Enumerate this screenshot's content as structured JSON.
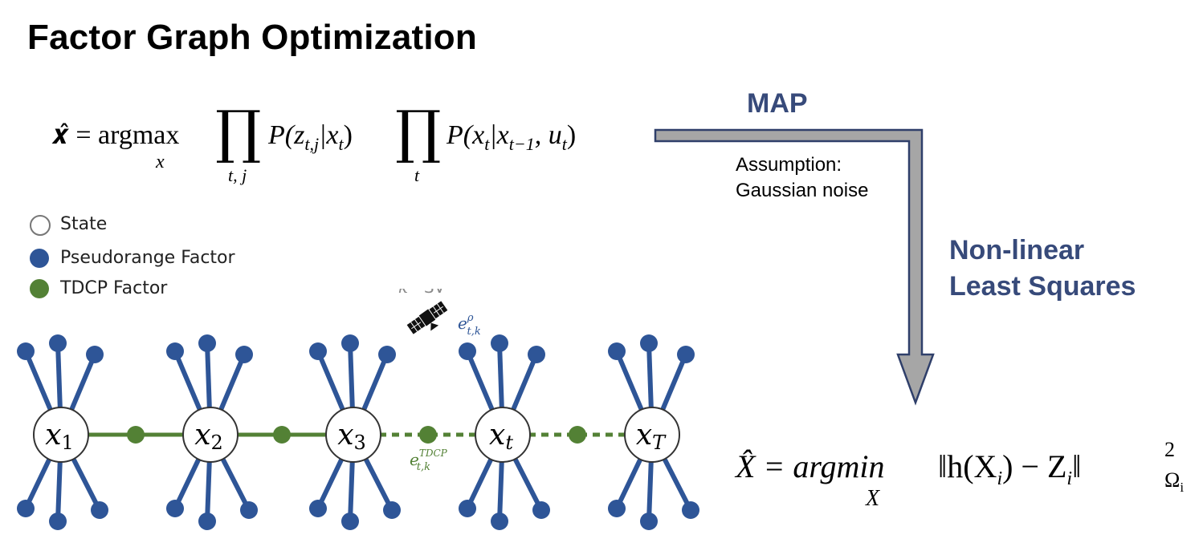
{
  "title": "Factor Graph Optimization",
  "colors": {
    "factor_blue": "#2e5597",
    "tdcp_green": "#538135",
    "arrow_gray": "#a6a6a6",
    "arrow_border": "#2f3f6a",
    "heading_blue": "#374a7a"
  },
  "map_equation": {
    "lhs": "𝒙̂ = argmax",
    "argmax_sub": "x",
    "prod1_sub": "t, j",
    "term1": "P(z",
    "term1_sub": "t,j",
    "term1_rest": "|x",
    "term1_sub2": "t",
    "term1_close": ")",
    "prod2_sub": "t",
    "term2": "P(x",
    "term2_sub": "t",
    "term2_rest": "|x",
    "term2_sub2": "t−1",
    "term2_rest2": ", u",
    "term2_sub3": "t",
    "term2_close": ")"
  },
  "legend": [
    {
      "label": "State",
      "icon": "hollow-circle-icon"
    },
    {
      "label": "Pseudorange Factor",
      "icon": "blue-dot-icon"
    },
    {
      "label": "TDCP Factor",
      "icon": "green-dot-icon"
    }
  ],
  "flow": {
    "map_label": "MAP",
    "assumption_line1": "Assumption:",
    "assumption_line2": "Gaussian noise",
    "nls_line1": "Non-linear",
    "nls_line2": "Least Squares"
  },
  "graph": {
    "nodes": [
      {
        "base": "x",
        "sub": "1"
      },
      {
        "base": "x",
        "sub": "2"
      },
      {
        "base": "x",
        "sub": "3"
      },
      {
        "base": "x",
        "sub": "t"
      },
      {
        "base": "x",
        "sub": "T"
      }
    ],
    "sv_label_k": "k",
    "sv_label_sup": "th",
    "sv_label_rest": " SV",
    "sv_icon": "satellite-icon",
    "pseudorange_error": {
      "base": "e",
      "sup": "ρ",
      "sub": "t,k"
    },
    "tdcp_error": {
      "base": "e",
      "sup": "TDCP",
      "sub": "t,k"
    }
  },
  "nls_equation": {
    "lhs": "X̂ = argmin",
    "argmin_sub": "X",
    "norm": "‖h(X",
    "norm_sub1": "i",
    "norm_mid": ") − Z",
    "norm_sub2": "i",
    "norm_close": "‖",
    "power": "2",
    "weight": "Ω",
    "weight_sub": "i"
  }
}
